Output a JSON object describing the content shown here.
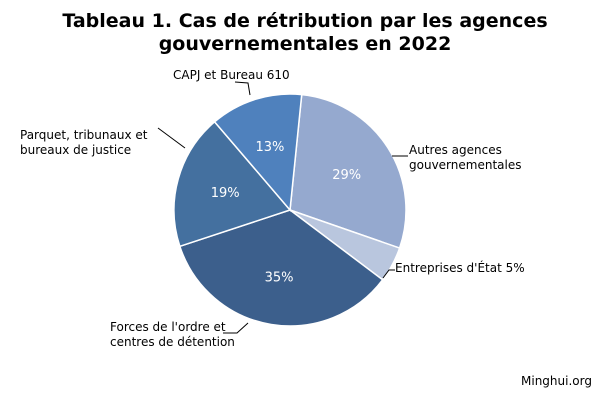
{
  "chart_data": {
    "type": "pie",
    "title": "Tableau 1. Cas de rétribution par les agences gouvernementales en 2022",
    "title_lines": [
      "Tableau 1. Cas de rétribution par les agences",
      "gouvernementales en 2022"
    ],
    "slices": [
      {
        "label": "Autres agences gouvernementales",
        "label_lines": [
          "Autres agences",
          "gouvernementales"
        ],
        "value": 29,
        "value_label": "29%",
        "color": "#95a9cf"
      },
      {
        "label": "Entreprises d'État 5%",
        "label_lines": [
          "Entreprises d'État 5%"
        ],
        "value": 5,
        "value_label": "",
        "color": "#b9c6de"
      },
      {
        "label": "Forces de l'ordre et centres de détention",
        "label_lines": [
          "Forces de l'ordre et",
          "centres de détention"
        ],
        "value": 35,
        "value_label": "35%",
        "color": "#3c5f8c"
      },
      {
        "label": "Parquet, tribunaux et bureaux de justice",
        "label_lines": [
          "Parquet, tribunaux et",
          "bureaux de justice"
        ],
        "value": 19,
        "value_label": "19%",
        "color": "#44709f"
      },
      {
        "label": "CAPJ et Bureau 610",
        "label_lines": [
          "CAPJ et Bureau 610"
        ],
        "value": 13,
        "value_label": "13%",
        "color": "#4f81bd"
      }
    ],
    "legend": "none",
    "source": "Minghui.org"
  }
}
